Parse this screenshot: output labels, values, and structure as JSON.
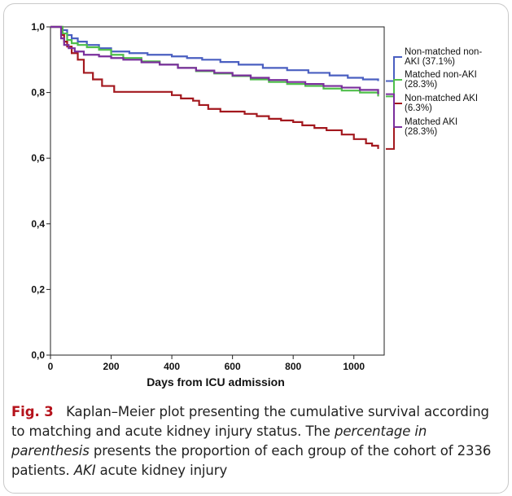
{
  "chart_data": {
    "type": "line",
    "subtype": "kaplan-meier step curves",
    "xlabel": "Days from ICU admission",
    "ylabel": "",
    "xlim": [
      0,
      1100
    ],
    "ylim": [
      0.0,
      1.0
    ],
    "x_ticks": [
      0,
      200,
      400,
      600,
      800,
      1000
    ],
    "x_tick_labels": [
      "0",
      "200",
      "400",
      "600",
      "800",
      "1000"
    ],
    "y_ticks": [
      0.0,
      0.2,
      0.4,
      0.6,
      0.8,
      1.0
    ],
    "y_tick_labels": [
      "0,0",
      "0,2",
      "0,4",
      "0,6",
      "0,8",
      "1,0"
    ],
    "grid": false,
    "legend_position": "right",
    "series": [
      {
        "name": "Non-matched non-AKI (37.1%)",
        "color": "#4a5fc1",
        "points": [
          [
            0,
            1.0
          ],
          [
            30,
            1.0
          ],
          [
            40,
            0.99
          ],
          [
            55,
            0.975
          ],
          [
            70,
            0.965
          ],
          [
            90,
            0.955
          ],
          [
            120,
            0.945
          ],
          [
            160,
            0.935
          ],
          [
            200,
            0.925
          ],
          [
            260,
            0.92
          ],
          [
            320,
            0.915
          ],
          [
            400,
            0.91
          ],
          [
            450,
            0.905
          ],
          [
            500,
            0.9
          ],
          [
            560,
            0.893
          ],
          [
            620,
            0.885
          ],
          [
            700,
            0.875
          ],
          [
            780,
            0.868
          ],
          [
            850,
            0.86
          ],
          [
            920,
            0.852
          ],
          [
            980,
            0.845
          ],
          [
            1030,
            0.84
          ],
          [
            1080,
            0.835
          ]
        ]
      },
      {
        "name": "Matched non-AKI (28.3%)",
        "color": "#4fbf4a",
        "points": [
          [
            0,
            1.0
          ],
          [
            30,
            1.0
          ],
          [
            40,
            0.98
          ],
          [
            55,
            0.96
          ],
          [
            70,
            0.95
          ],
          [
            90,
            0.945
          ],
          [
            120,
            0.938
          ],
          [
            160,
            0.93
          ],
          [
            200,
            0.915
          ],
          [
            240,
            0.905
          ],
          [
            300,
            0.895
          ],
          [
            360,
            0.885
          ],
          [
            420,
            0.875
          ],
          [
            480,
            0.865
          ],
          [
            540,
            0.858
          ],
          [
            600,
            0.85
          ],
          [
            660,
            0.84
          ],
          [
            720,
            0.832
          ],
          [
            780,
            0.826
          ],
          [
            840,
            0.82
          ],
          [
            900,
            0.812
          ],
          [
            960,
            0.806
          ],
          [
            1020,
            0.8
          ],
          [
            1080,
            0.788
          ]
        ]
      },
      {
        "name": "Non-matched AKI (6.3%)",
        "color": "#a3181e",
        "points": [
          [
            0,
            1.0
          ],
          [
            30,
            1.0
          ],
          [
            35,
            0.975
          ],
          [
            45,
            0.955
          ],
          [
            55,
            0.94
          ],
          [
            70,
            0.92
          ],
          [
            90,
            0.9
          ],
          [
            110,
            0.86
          ],
          [
            140,
            0.84
          ],
          [
            170,
            0.82
          ],
          [
            210,
            0.802
          ],
          [
            380,
            0.802
          ],
          [
            400,
            0.792
          ],
          [
            430,
            0.782
          ],
          [
            470,
            0.775
          ],
          [
            490,
            0.762
          ],
          [
            520,
            0.75
          ],
          [
            560,
            0.742
          ],
          [
            600,
            0.742
          ],
          [
            640,
            0.735
          ],
          [
            680,
            0.728
          ],
          [
            720,
            0.72
          ],
          [
            760,
            0.715
          ],
          [
            800,
            0.71
          ],
          [
            830,
            0.7
          ],
          [
            870,
            0.692
          ],
          [
            910,
            0.685
          ],
          [
            960,
            0.672
          ],
          [
            1000,
            0.658
          ],
          [
            1040,
            0.645
          ],
          [
            1060,
            0.638
          ],
          [
            1080,
            0.628
          ]
        ]
      },
      {
        "name": "Matched AKI (28.3%)",
        "color": "#7a2e9c",
        "points": [
          [
            0,
            1.0
          ],
          [
            30,
            1.0
          ],
          [
            35,
            0.965
          ],
          [
            45,
            0.945
          ],
          [
            60,
            0.935
          ],
          [
            80,
            0.925
          ],
          [
            110,
            0.915
          ],
          [
            160,
            0.91
          ],
          [
            200,
            0.905
          ],
          [
            240,
            0.9
          ],
          [
            300,
            0.892
          ],
          [
            360,
            0.885
          ],
          [
            420,
            0.875
          ],
          [
            480,
            0.867
          ],
          [
            540,
            0.86
          ],
          [
            600,
            0.852
          ],
          [
            660,
            0.845
          ],
          [
            720,
            0.838
          ],
          [
            780,
            0.832
          ],
          [
            840,
            0.826
          ],
          [
            900,
            0.82
          ],
          [
            960,
            0.815
          ],
          [
            1020,
            0.808
          ],
          [
            1080,
            0.795
          ]
        ]
      }
    ],
    "legend": [
      {
        "line1": "Non-matched non-",
        "line2": "AKI (37.1%)"
      },
      {
        "line1": "Matched non-AKI",
        "line2": "(28.3%)"
      },
      {
        "line1": "Non-matched AKI",
        "line2": "(6.3%)"
      },
      {
        "line1": "Matched AKI",
        "line2": "(28.3%)"
      }
    ]
  },
  "caption": {
    "label": "Fig. 3",
    "text_1": "Kaplan–Meier plot presenting the cumulative survival according to matching and acute kidney injury status. The ",
    "italic_1": "percentage in parenthesis",
    "text_2": " presents the proportion of each group of the cohort of 2336 patients. ",
    "italic_2": "AKI",
    "text_3": " acute kidney injury"
  }
}
